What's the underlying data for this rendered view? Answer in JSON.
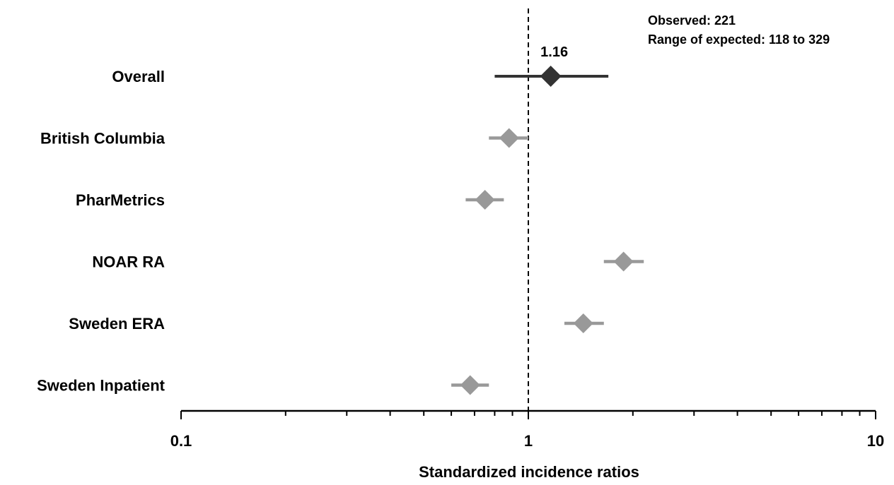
{
  "chart_data": {
    "type": "forest",
    "xlabel": "Standardized incidence ratios",
    "xscale": "log",
    "xlim": [
      0.1,
      10
    ],
    "xticks": [
      {
        "value": 0.1,
        "label": "0.1"
      },
      {
        "value": 1,
        "label": "1"
      },
      {
        "value": 10,
        "label": "10"
      }
    ],
    "reference_line": 1,
    "annotation": {
      "line1": "Observed: 221",
      "line2": "Range of expected: 118 to 329"
    },
    "overall_label": "1.16",
    "rows": [
      {
        "label": "Overall",
        "value": 1.16,
        "ci_low": 0.8,
        "ci_high": 1.7,
        "color": "#333333"
      },
      {
        "label": "British Columbia",
        "value": 0.88,
        "ci_low": 0.77,
        "ci_high": 1.0,
        "color": "#999999"
      },
      {
        "label": "PharMetrics",
        "value": 0.75,
        "ci_low": 0.66,
        "ci_high": 0.85,
        "color": "#999999"
      },
      {
        "label": "NOAR RA",
        "value": 1.88,
        "ci_low": 1.65,
        "ci_high": 2.15,
        "color": "#999999"
      },
      {
        "label": "Sweden ERA",
        "value": 1.44,
        "ci_low": 1.27,
        "ci_high": 1.65,
        "color": "#999999"
      },
      {
        "label": "Sweden Inpatient",
        "value": 0.68,
        "ci_low": 0.6,
        "ci_high": 0.77,
        "color": "#999999"
      }
    ]
  }
}
